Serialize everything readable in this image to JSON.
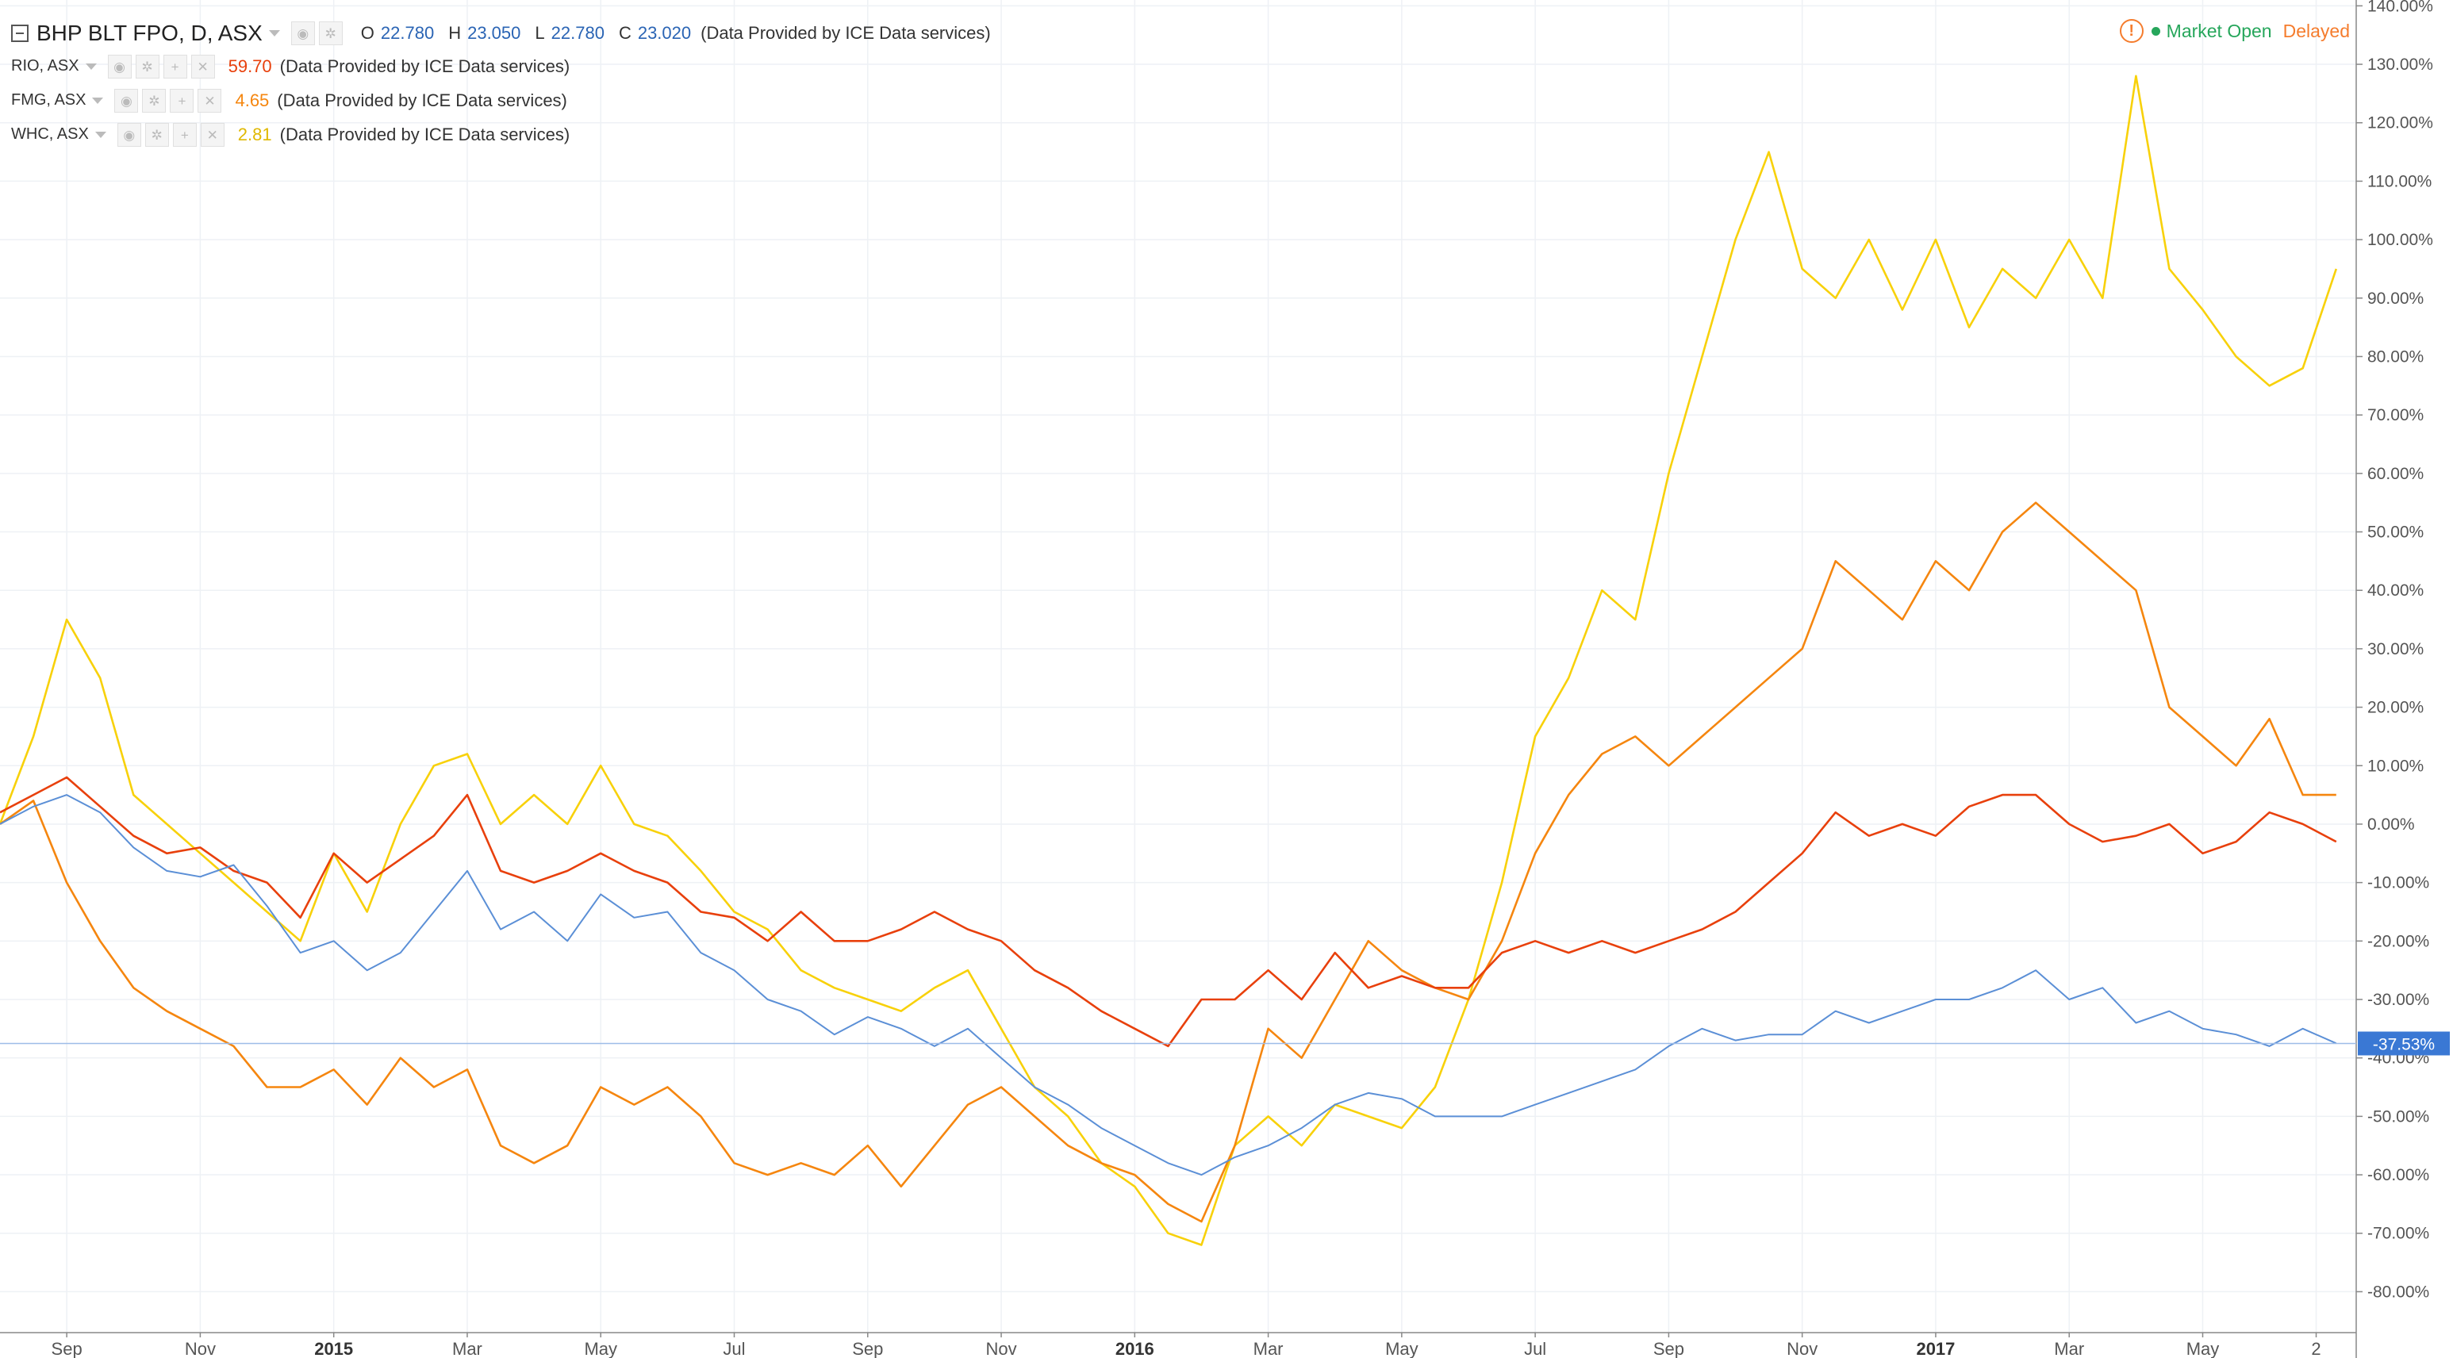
{
  "legend": {
    "main": {
      "symbol": "BHP BLT FPO, D, ASX",
      "open_label": "O",
      "open": "22.780",
      "high_label": "H",
      "high": "23.050",
      "low_label": "L",
      "low": "22.780",
      "close_label": "C",
      "close": "23.020",
      "note": "(Data Provided by ICE Data services)"
    },
    "rio": {
      "symbol": "RIO, ASX",
      "value": "59.70",
      "note": "(Data Provided by ICE Data services)"
    },
    "fmg": {
      "symbol": "FMG, ASX",
      "value": "4.65",
      "note": "(Data Provided by ICE Data services)"
    },
    "whc": {
      "symbol": "WHC, ASX",
      "value": "2.81",
      "note": "(Data Provided by ICE Data services)"
    }
  },
  "status": {
    "market": "Market Open",
    "feed": "Delayed",
    "warning_icon": "!"
  },
  "colors": {
    "bhp": "#5b8fd6",
    "rio": "#e8400c",
    "fmg": "#f5860f",
    "whc": "#f8d10a",
    "grid": "#eef1f5",
    "axis": "#888888",
    "label_bg": "#3a78d4"
  },
  "chart_data": {
    "type": "line",
    "x_unit": "month index from Aug 2014",
    "xlim": [
      0,
      35.3
    ],
    "ylim": [
      -87,
      141
    ],
    "y_ticks": [
      140,
      130,
      120,
      110,
      100,
      90,
      80,
      70,
      60,
      50,
      40,
      30,
      20,
      10,
      0,
      -10,
      -20,
      -30,
      -40,
      -50,
      -60,
      -70,
      -80
    ],
    "y_tick_labels": [
      "140.00%",
      "130.00%",
      "120.00%",
      "110.00%",
      "100.00%",
      "90.00%",
      "80.00%",
      "70.00%",
      "60.00%",
      "50.00%",
      "40.00%",
      "30.00%",
      "20.00%",
      "10.00%",
      "0.00%",
      "-10.00%",
      "-20.00%",
      "-30.00%",
      "-40.00%",
      "-50.00%",
      "-60.00%",
      "-70.00%",
      "-80.00%"
    ],
    "x_ticks": [
      {
        "x": 1,
        "label": "Sep",
        "bold": false
      },
      {
        "x": 3,
        "label": "Nov",
        "bold": false
      },
      {
        "x": 5,
        "label": "2015",
        "bold": true
      },
      {
        "x": 7,
        "label": "Mar",
        "bold": false
      },
      {
        "x": 9,
        "label": "May",
        "bold": false
      },
      {
        "x": 11,
        "label": "Jul",
        "bold": false
      },
      {
        "x": 13,
        "label": "Sep",
        "bold": false
      },
      {
        "x": 15,
        "label": "Nov",
        "bold": false
      },
      {
        "x": 17,
        "label": "2016",
        "bold": true
      },
      {
        "x": 19,
        "label": "Mar",
        "bold": false
      },
      {
        "x": 21,
        "label": "May",
        "bold": false
      },
      {
        "x": 23,
        "label": "Jul",
        "bold": false
      },
      {
        "x": 25,
        "label": "Sep",
        "bold": false
      },
      {
        "x": 27,
        "label": "Nov",
        "bold": false
      },
      {
        "x": 29,
        "label": "2017",
        "bold": true
      },
      {
        "x": 31,
        "label": "Mar",
        "bold": false
      },
      {
        "x": 33,
        "label": "May",
        "bold": false
      },
      {
        "x": 34.7,
        "label": "2",
        "bold": false
      }
    ],
    "last_value": -37.53,
    "last_value_label": "-37.53%",
    "series": [
      {
        "name": "BHP BLT FPO, D, ASX",
        "key": "bhp",
        "x": [
          0,
          0.5,
          1,
          1.5,
          2,
          2.5,
          3,
          3.5,
          4,
          4.5,
          5,
          5.5,
          6,
          6.5,
          7,
          7.5,
          8,
          8.5,
          9,
          9.5,
          10,
          10.5,
          11,
          11.5,
          12,
          12.5,
          13,
          13.5,
          14,
          14.5,
          15,
          15.5,
          16,
          16.5,
          17,
          17.5,
          18,
          18.5,
          19,
          19.5,
          20,
          20.5,
          21,
          21.5,
          22,
          22.5,
          23,
          23.5,
          24,
          24.5,
          25,
          25.5,
          26,
          26.5,
          27,
          27.5,
          28,
          28.5,
          29,
          29.5,
          30,
          30.5,
          31,
          31.5,
          32,
          32.5,
          33,
          33.5,
          34,
          34.5,
          35
        ],
        "y": [
          0,
          3,
          5,
          2,
          -4,
          -8,
          -9,
          -7,
          -14,
          -22,
          -20,
          -25,
          -22,
          -15,
          -8,
          -18,
          -15,
          -20,
          -12,
          -16,
          -15,
          -22,
          -25,
          -30,
          -32,
          -36,
          -33,
          -35,
          -38,
          -35,
          -40,
          -45,
          -48,
          -52,
          -55,
          -58,
          -60,
          -57,
          -55,
          -52,
          -48,
          -46,
          -47,
          -50,
          -50,
          -50,
          -48,
          -46,
          -44,
          -42,
          -38,
          -35,
          -37,
          -36,
          -36,
          -32,
          -34,
          -32,
          -30,
          -30,
          -28,
          -25,
          -30,
          -28,
          -34,
          -32,
          -35,
          -36,
          -38,
          -35,
          -37.5
        ]
      },
      {
        "name": "RIO, ASX",
        "key": "rio",
        "x": [
          0,
          0.5,
          1,
          1.5,
          2,
          2.5,
          3,
          3.5,
          4,
          4.5,
          5,
          5.5,
          6,
          6.5,
          7,
          7.5,
          8,
          8.5,
          9,
          9.5,
          10,
          10.5,
          11,
          11.5,
          12,
          12.5,
          13,
          13.5,
          14,
          14.5,
          15,
          15.5,
          16,
          16.5,
          17,
          17.5,
          18,
          18.5,
          19,
          19.5,
          20,
          20.5,
          21,
          21.5,
          22,
          22.5,
          23,
          23.5,
          24,
          24.5,
          25,
          25.5,
          26,
          26.5,
          27,
          27.5,
          28,
          28.5,
          29,
          29.5,
          30,
          30.5,
          31,
          31.5,
          32,
          32.5,
          33,
          33.5,
          34,
          34.5,
          35
        ],
        "y": [
          2,
          5,
          8,
          3,
          -2,
          -5,
          -4,
          -8,
          -10,
          -16,
          -5,
          -10,
          -6,
          -2,
          5,
          -8,
          -10,
          -8,
          -5,
          -8,
          -10,
          -15,
          -16,
          -20,
          -15,
          -20,
          -20,
          -18,
          -15,
          -18,
          -20,
          -25,
          -28,
          -32,
          -35,
          -38,
          -30,
          -30,
          -25,
          -30,
          -22,
          -28,
          -26,
          -28,
          -28,
          -22,
          -20,
          -22,
          -20,
          -22,
          -20,
          -18,
          -15,
          -10,
          -5,
          2,
          -2,
          0,
          -2,
          3,
          5,
          5,
          0,
          -3,
          -2,
          0,
          -5,
          -3,
          2,
          0,
          -3
        ]
      },
      {
        "name": "FMG, ASX",
        "key": "fmg",
        "x": [
          0,
          0.5,
          1,
          1.5,
          2,
          2.5,
          3,
          3.5,
          4,
          4.5,
          5,
          5.5,
          6,
          6.5,
          7,
          7.5,
          8,
          8.5,
          9,
          9.5,
          10,
          10.5,
          11,
          11.5,
          12,
          12.5,
          13,
          13.5,
          14,
          14.5,
          15,
          15.5,
          16,
          16.5,
          17,
          17.5,
          18,
          18.5,
          19,
          19.5,
          20,
          20.5,
          21,
          21.5,
          22,
          22.5,
          23,
          23.5,
          24,
          24.5,
          25,
          25.5,
          26,
          26.5,
          27,
          27.5,
          28,
          28.5,
          29,
          29.5,
          30,
          30.5,
          31,
          31.5,
          32,
          32.5,
          33,
          33.5,
          34,
          34.5,
          35
        ],
        "y": [
          0,
          4,
          -10,
          -20,
          -28,
          -32,
          -35,
          -38,
          -45,
          -45,
          -42,
          -48,
          -40,
          -45,
          -42,
          -55,
          -58,
          -55,
          -45,
          -48,
          -45,
          -50,
          -58,
          -60,
          -58,
          -60,
          -55,
          -62,
          -55,
          -48,
          -45,
          -50,
          -55,
          -58,
          -60,
          -65,
          -68,
          -55,
          -35,
          -40,
          -30,
          -20,
          -25,
          -28,
          -30,
          -20,
          -5,
          5,
          12,
          15,
          10,
          15,
          20,
          25,
          30,
          45,
          40,
          35,
          45,
          40,
          50,
          55,
          50,
          45,
          40,
          20,
          15,
          10,
          18,
          5,
          5
        ]
      },
      {
        "name": "WHC, ASX",
        "key": "whc",
        "x": [
          0,
          0.5,
          1,
          1.5,
          2,
          2.5,
          3,
          3.5,
          4,
          4.5,
          5,
          5.5,
          6,
          6.5,
          7,
          7.5,
          8,
          8.5,
          9,
          9.5,
          10,
          10.5,
          11,
          11.5,
          12,
          12.5,
          13,
          13.5,
          14,
          14.5,
          15,
          15.5,
          16,
          16.5,
          17,
          17.5,
          18,
          18.5,
          19,
          19.5,
          20,
          20.5,
          21,
          21.5,
          22,
          22.5,
          23,
          23.5,
          24,
          24.5,
          25,
          25.5,
          26,
          26.5,
          27,
          27.5,
          28,
          28.5,
          29,
          29.5,
          30,
          30.5,
          31,
          31.5,
          32,
          32.5,
          33,
          33.5,
          34,
          34.5,
          35
        ],
        "y": [
          0,
          15,
          35,
          25,
          5,
          0,
          -5,
          -10,
          -15,
          -20,
          -5,
          -15,
          0,
          10,
          12,
          0,
          5,
          0,
          10,
          0,
          -2,
          -8,
          -15,
          -18,
          -25,
          -28,
          -30,
          -32,
          -28,
          -25,
          -35,
          -45,
          -50,
          -58,
          -62,
          -70,
          -72,
          -55,
          -50,
          -55,
          -48,
          -50,
          -52,
          -45,
          -30,
          -10,
          15,
          25,
          40,
          35,
          60,
          80,
          100,
          115,
          95,
          90,
          100,
          88,
          100,
          85,
          95,
          90,
          100,
          90,
          128,
          95,
          88,
          80,
          75,
          78,
          95
        ]
      }
    ]
  }
}
